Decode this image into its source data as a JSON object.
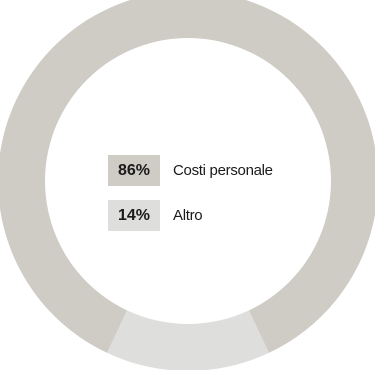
{
  "chart_data": {
    "type": "pie",
    "variant": "donut",
    "slices": [
      {
        "label": "Costi personale",
        "value": 86,
        "value_label": "86%",
        "color": "#cfcbc5"
      },
      {
        "label": "Altro",
        "value": 14,
        "value_label": "14%",
        "color": "#dededd"
      }
    ],
    "legend_placement": "center"
  }
}
